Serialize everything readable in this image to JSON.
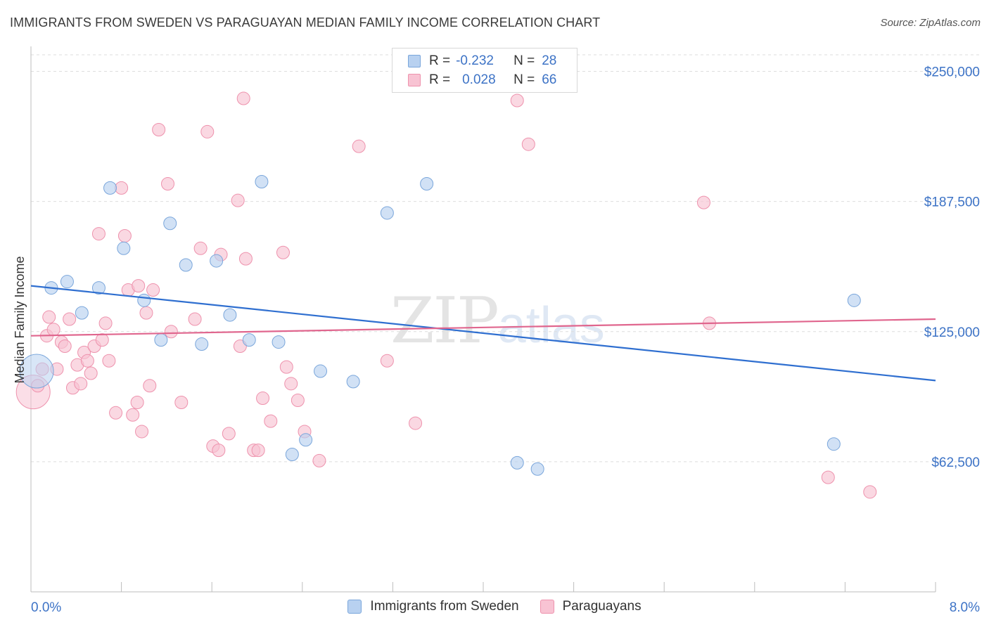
{
  "title": "IMMIGRANTS FROM SWEDEN VS PARAGUAYAN MEDIAN FAMILY INCOME CORRELATION CHART",
  "source": "Source: ZipAtlas.com",
  "watermark": {
    "zip": "ZIP",
    "atlas": "atlas"
  },
  "stats": {
    "r_label": "R =",
    "n_label": "N =",
    "rows": [
      {
        "r": "-0.232",
        "n": "28"
      },
      {
        "r": "0.028",
        "n": "66"
      }
    ]
  },
  "legend": {
    "items": [
      {
        "label": "Immigrants from Sweden"
      },
      {
        "label": "Paraguayans"
      }
    ]
  },
  "colors": {
    "blue_fill": "#b8d1f0",
    "blue_stroke": "#7aa6db",
    "blue_line": "#2f6fd0",
    "pink_fill": "#f8c3d3",
    "pink_stroke": "#ee92ad",
    "pink_line": "#e0668e",
    "axis_text": "#3d73c6",
    "grid": "#dedede"
  },
  "chart_data": {
    "type": "scatter",
    "title": "IMMIGRANTS FROM SWEDEN VS PARAGUAYAN MEDIAN FAMILY INCOME CORRELATION CHART",
    "xlabel": "",
    "ylabel": "Median Family Income",
    "xlim": [
      0,
      8.0
    ],
    "ylim": [
      0,
      262000
    ],
    "x_tick_labels": [
      "0.0%",
      "8.0%"
    ],
    "y_ticks": [
      62500,
      125000,
      187500,
      250000
    ],
    "y_tick_labels": [
      "$62,500",
      "$125,000",
      "$187,500",
      "$250,000"
    ],
    "grid": true,
    "legend_position": "bottom",
    "series": [
      {
        "name": "Immigrants from Sweden",
        "r": -0.232,
        "n": 28,
        "trend": {
          "x": [
            0,
            8.0
          ],
          "y": [
            147000,
            101500
          ]
        },
        "points": [
          {
            "x": 0.05,
            "y": 106000,
            "big": true
          },
          {
            "x": 0.18,
            "y": 146000
          },
          {
            "x": 0.32,
            "y": 149000
          },
          {
            "x": 0.45,
            "y": 134000
          },
          {
            "x": 0.6,
            "y": 146000
          },
          {
            "x": 0.7,
            "y": 194000
          },
          {
            "x": 0.82,
            "y": 165000
          },
          {
            "x": 1.0,
            "y": 140000
          },
          {
            "x": 1.15,
            "y": 121000
          },
          {
            "x": 1.23,
            "y": 177000
          },
          {
            "x": 1.37,
            "y": 157000
          },
          {
            "x": 1.51,
            "y": 119000
          },
          {
            "x": 1.64,
            "y": 159000
          },
          {
            "x": 1.76,
            "y": 133000
          },
          {
            "x": 1.93,
            "y": 121000
          },
          {
            "x": 2.04,
            "y": 197000
          },
          {
            "x": 2.19,
            "y": 120000
          },
          {
            "x": 2.31,
            "y": 66000
          },
          {
            "x": 2.43,
            "y": 73000
          },
          {
            "x": 2.56,
            "y": 106000
          },
          {
            "x": 2.85,
            "y": 101000
          },
          {
            "x": 3.15,
            "y": 182000
          },
          {
            "x": 3.5,
            "y": 196000
          },
          {
            "x": 4.3,
            "y": 62000
          },
          {
            "x": 4.48,
            "y": 59000
          },
          {
            "x": 7.1,
            "y": 71000
          },
          {
            "x": 7.28,
            "y": 140000
          }
        ]
      },
      {
        "name": "Paraguayans",
        "r": 0.028,
        "n": 66,
        "trend": {
          "x": [
            0,
            8.0
          ],
          "y": [
            123000,
            131000
          ]
        },
        "points": [
          {
            "x": 0.02,
            "y": 96000,
            "big": true
          },
          {
            "x": 0.06,
            "y": 99000
          },
          {
            "x": 0.1,
            "y": 107000
          },
          {
            "x": 0.14,
            "y": 123000
          },
          {
            "x": 0.16,
            "y": 132000
          },
          {
            "x": 0.2,
            "y": 126000
          },
          {
            "x": 0.23,
            "y": 107000
          },
          {
            "x": 0.27,
            "y": 120000
          },
          {
            "x": 0.3,
            "y": 118000
          },
          {
            "x": 0.34,
            "y": 131000
          },
          {
            "x": 0.37,
            "y": 98000
          },
          {
            "x": 0.41,
            "y": 109000
          },
          {
            "x": 0.44,
            "y": 100000
          },
          {
            "x": 0.47,
            "y": 115000
          },
          {
            "x": 0.5,
            "y": 111000
          },
          {
            "x": 0.53,
            "y": 105000
          },
          {
            "x": 0.56,
            "y": 118000
          },
          {
            "x": 0.6,
            "y": 172000
          },
          {
            "x": 0.63,
            "y": 121000
          },
          {
            "x": 0.66,
            "y": 129000
          },
          {
            "x": 0.69,
            "y": 111000
          },
          {
            "x": 0.75,
            "y": 86000
          },
          {
            "x": 0.8,
            "y": 194000
          },
          {
            "x": 0.83,
            "y": 171000
          },
          {
            "x": 0.86,
            "y": 145000
          },
          {
            "x": 0.9,
            "y": 85000
          },
          {
            "x": 0.94,
            "y": 91000
          },
          {
            "x": 0.95,
            "y": 147000
          },
          {
            "x": 0.98,
            "y": 77000
          },
          {
            "x": 1.02,
            "y": 134000
          },
          {
            "x": 1.05,
            "y": 99000
          },
          {
            "x": 1.08,
            "y": 145000
          },
          {
            "x": 1.13,
            "y": 222000
          },
          {
            "x": 1.21,
            "y": 196000
          },
          {
            "x": 1.24,
            "y": 125000
          },
          {
            "x": 1.33,
            "y": 91000
          },
          {
            "x": 1.45,
            "y": 131000
          },
          {
            "x": 1.5,
            "y": 165000
          },
          {
            "x": 1.56,
            "y": 221000
          },
          {
            "x": 1.61,
            "y": 70000
          },
          {
            "x": 1.66,
            "y": 68000
          },
          {
            "x": 1.68,
            "y": 162000
          },
          {
            "x": 1.75,
            "y": 76000
          },
          {
            "x": 1.83,
            "y": 188000
          },
          {
            "x": 1.85,
            "y": 118000
          },
          {
            "x": 1.88,
            "y": 237000
          },
          {
            "x": 1.9,
            "y": 160000
          },
          {
            "x": 1.97,
            "y": 68000
          },
          {
            "x": 2.01,
            "y": 68000
          },
          {
            "x": 2.05,
            "y": 93000
          },
          {
            "x": 2.12,
            "y": 82000
          },
          {
            "x": 2.23,
            "y": 163000
          },
          {
            "x": 2.26,
            "y": 108000
          },
          {
            "x": 2.3,
            "y": 100000
          },
          {
            "x": 2.36,
            "y": 92000
          },
          {
            "x": 2.42,
            "y": 77000
          },
          {
            "x": 2.55,
            "y": 63000
          },
          {
            "x": 2.9,
            "y": 214000
          },
          {
            "x": 3.15,
            "y": 111000
          },
          {
            "x": 3.4,
            "y": 81000
          },
          {
            "x": 4.3,
            "y": 236000
          },
          {
            "x": 4.4,
            "y": 215000
          },
          {
            "x": 5.95,
            "y": 187000
          },
          {
            "x": 6.0,
            "y": 129000
          },
          {
            "x": 7.05,
            "y": 55000
          },
          {
            "x": 7.42,
            "y": 48000
          }
        ]
      }
    ]
  }
}
